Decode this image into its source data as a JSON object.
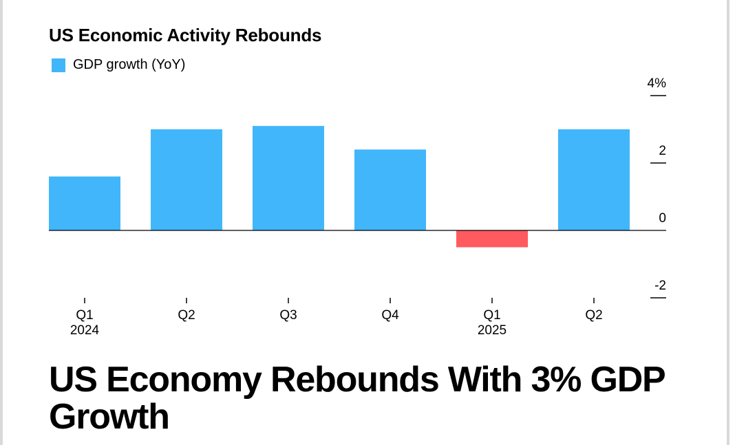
{
  "chart_title": "US Economic Activity Rebounds",
  "headline": "US Economy Rebounds With 3% GDP Growth",
  "colors": {
    "positive": "#41b6fb",
    "negative": "#ff5a60",
    "axis": "#000000",
    "frame": "#d9d9d9"
  },
  "chart_data": {
    "type": "bar",
    "categories": [
      "Q1 2024",
      "Q2 2024",
      "Q3 2024",
      "Q4 2024",
      "Q1 2025",
      "Q2 2025"
    ],
    "tick_labels": [
      {
        "quarter": "Q1",
        "year": "2024"
      },
      {
        "quarter": "Q2",
        "year": ""
      },
      {
        "quarter": "Q3",
        "year": ""
      },
      {
        "quarter": "Q4",
        "year": ""
      },
      {
        "quarter": "Q1",
        "year": "2025"
      },
      {
        "quarter": "Q2",
        "year": ""
      }
    ],
    "series": [
      {
        "name": "GDP growth (YoY)",
        "values": [
          1.6,
          3.0,
          3.1,
          2.4,
          -0.5,
          3.0
        ]
      }
    ],
    "yticks": [
      {
        "value": 4,
        "label": "4%"
      },
      {
        "value": 2,
        "label": "2"
      },
      {
        "value": 0,
        "label": "0"
      },
      {
        "value": -2,
        "label": "-2"
      }
    ],
    "ylim": [
      -2,
      4
    ],
    "xlabel": "",
    "ylabel": "",
    "legend": "top-left",
    "grid": false
  }
}
